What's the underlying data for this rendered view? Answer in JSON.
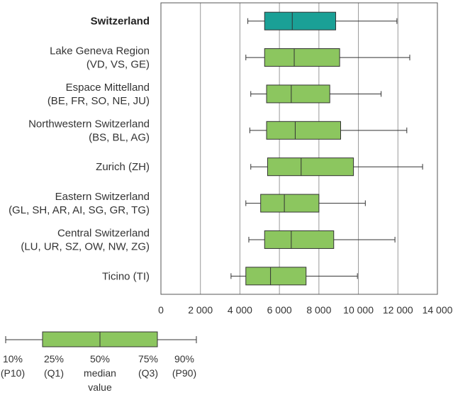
{
  "chart_data": {
    "type": "boxplot",
    "title": "",
    "xlabel": "",
    "ylabel": "",
    "xlim": [
      0,
      14000
    ],
    "x_ticks": [
      0,
      2000,
      4000,
      6000,
      8000,
      10000,
      12000,
      14000
    ],
    "x_tick_labels": [
      "0",
      "2 000",
      "4 000",
      "6 000",
      "8 000",
      "10 000",
      "12 000",
      "14 000"
    ],
    "grid": "vertical",
    "colors": {
      "highlight": "#1aa096",
      "box": "#8cc65f",
      "box_stroke": "#333333",
      "grid": "#999999"
    },
    "categories": [
      {
        "lines": [
          "Switzerland"
        ],
        "bold": true,
        "highlight": true,
        "p10": 4400,
        "q1": 5250,
        "median": 6650,
        "q3": 8850,
        "p90": 11950
      },
      {
        "lines": [
          "Lake Geneva Region",
          "(VD, VS, GE)"
        ],
        "p10": 4300,
        "q1": 5250,
        "median": 6750,
        "q3": 9050,
        "p90": 12600
      },
      {
        "lines": [
          "Espace Mittelland",
          "(BE, FR, SO, NE, JU)"
        ],
        "p10": 4550,
        "q1": 5350,
        "median": 6600,
        "q3": 8550,
        "p90": 11150
      },
      {
        "lines": [
          "Northwestern Switzerland",
          "(BS, BL, AG)"
        ],
        "p10": 4500,
        "q1": 5350,
        "median": 6800,
        "q3": 9100,
        "p90": 12450
      },
      {
        "lines": [
          "Zurich (ZH)"
        ],
        "p10": 4550,
        "q1": 5400,
        "median": 7100,
        "q3": 9750,
        "p90": 13250
      },
      {
        "lines": [
          "Eastern Switzerland",
          "(GL, SH, AR, AI, SG, GR, TG)"
        ],
        "p10": 4300,
        "q1": 5050,
        "median": 6250,
        "q3": 8000,
        "p90": 10350
      },
      {
        "lines": [
          "Central Switzerland",
          "(LU, UR, SZ, OW, NW, ZG)"
        ],
        "p10": 4450,
        "q1": 5250,
        "median": 6600,
        "q3": 8750,
        "p90": 11850
      },
      {
        "lines": [
          "Ticino (TI)"
        ],
        "p10": 3550,
        "q1": 4300,
        "median": 5550,
        "q3": 7350,
        "p90": 9950
      }
    ],
    "legend": [
      {
        "label": "10%",
        "sub": [
          "(P10)"
        ]
      },
      {
        "label": "25%",
        "sub": [
          "(Q1)"
        ]
      },
      {
        "label": "50%",
        "sub": [
          "median",
          "value"
        ]
      },
      {
        "label": "75%",
        "sub": [
          "(Q3)"
        ]
      },
      {
        "label": "90%",
        "sub": [
          "(P90)"
        ]
      }
    ]
  }
}
